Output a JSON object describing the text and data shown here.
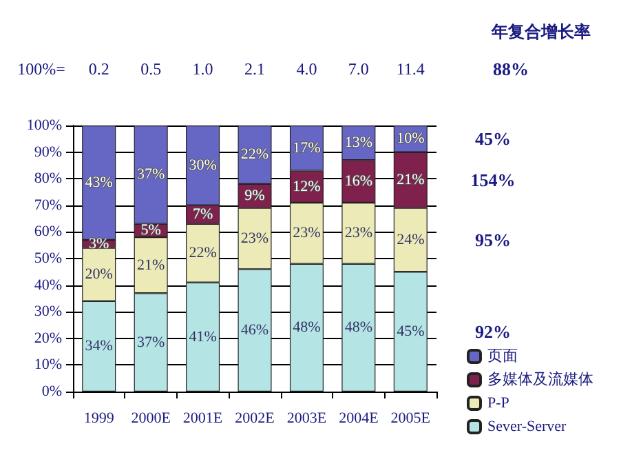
{
  "chart_data": {
    "type": "bar",
    "stacked": true,
    "categories": [
      "1999",
      "2000E",
      "2001E",
      "2002E",
      "2003E",
      "2004E",
      "2005E"
    ],
    "series": [
      {
        "name": "Sever-Server",
        "color": "#b4e4e4",
        "values": [
          34,
          37,
          41,
          46,
          48,
          48,
          45
        ],
        "value_labels": [
          "34%",
          "37%",
          "41%",
          "46%",
          "48%",
          "48%",
          "45%"
        ]
      },
      {
        "name": "P-P",
        "color": "#ecebb8",
        "values": [
          20,
          21,
          22,
          23,
          23,
          23,
          24
        ],
        "value_labels": [
          "20%",
          "21%",
          "22%",
          "23%",
          "23%",
          "23%",
          "24%"
        ]
      },
      {
        "name": "多媒体及流媒体",
        "color": "#80204c",
        "values": [
          3,
          5,
          7,
          9,
          12,
          16,
          21
        ],
        "value_labels": [
          "3%",
          "5%",
          "7%",
          "9%",
          "12%",
          "16%",
          "21%"
        ]
      },
      {
        "name": "页面",
        "color": "#6666c4",
        "values": [
          43,
          37,
          30,
          22,
          17,
          13,
          10
        ],
        "value_labels": [
          "43%",
          "37%",
          "30%",
          "22%",
          "17%",
          "13%",
          "10%"
        ]
      }
    ],
    "annotations": [
      "100%=",
      "0.2",
      "0.5",
      "1.0",
      "2.1",
      "4.0",
      "7.0",
      "11.4",
      "年复合增长率",
      "88%",
      "92%",
      "95%",
      "154%",
      "45%"
    ],
    "ylim": [
      0,
      100
    ],
    "yticks": [
      {
        "value": 0,
        "label": "0%"
      },
      {
        "value": 10,
        "label": "10%"
      },
      {
        "value": 20,
        "label": "20%"
      },
      {
        "value": 30,
        "label": "30%"
      },
      {
        "value": 40,
        "label": "40%"
      },
      {
        "value": 50,
        "label": "50%"
      },
      {
        "value": 60,
        "label": "60%"
      },
      {
        "value": 70,
        "label": "70%"
      },
      {
        "value": 80,
        "label": "80%"
      },
      {
        "value": 90,
        "label": "90%"
      },
      {
        "value": 100,
        "label": "100%"
      }
    ],
    "grid": "y",
    "legend": "bottom right"
  }
}
